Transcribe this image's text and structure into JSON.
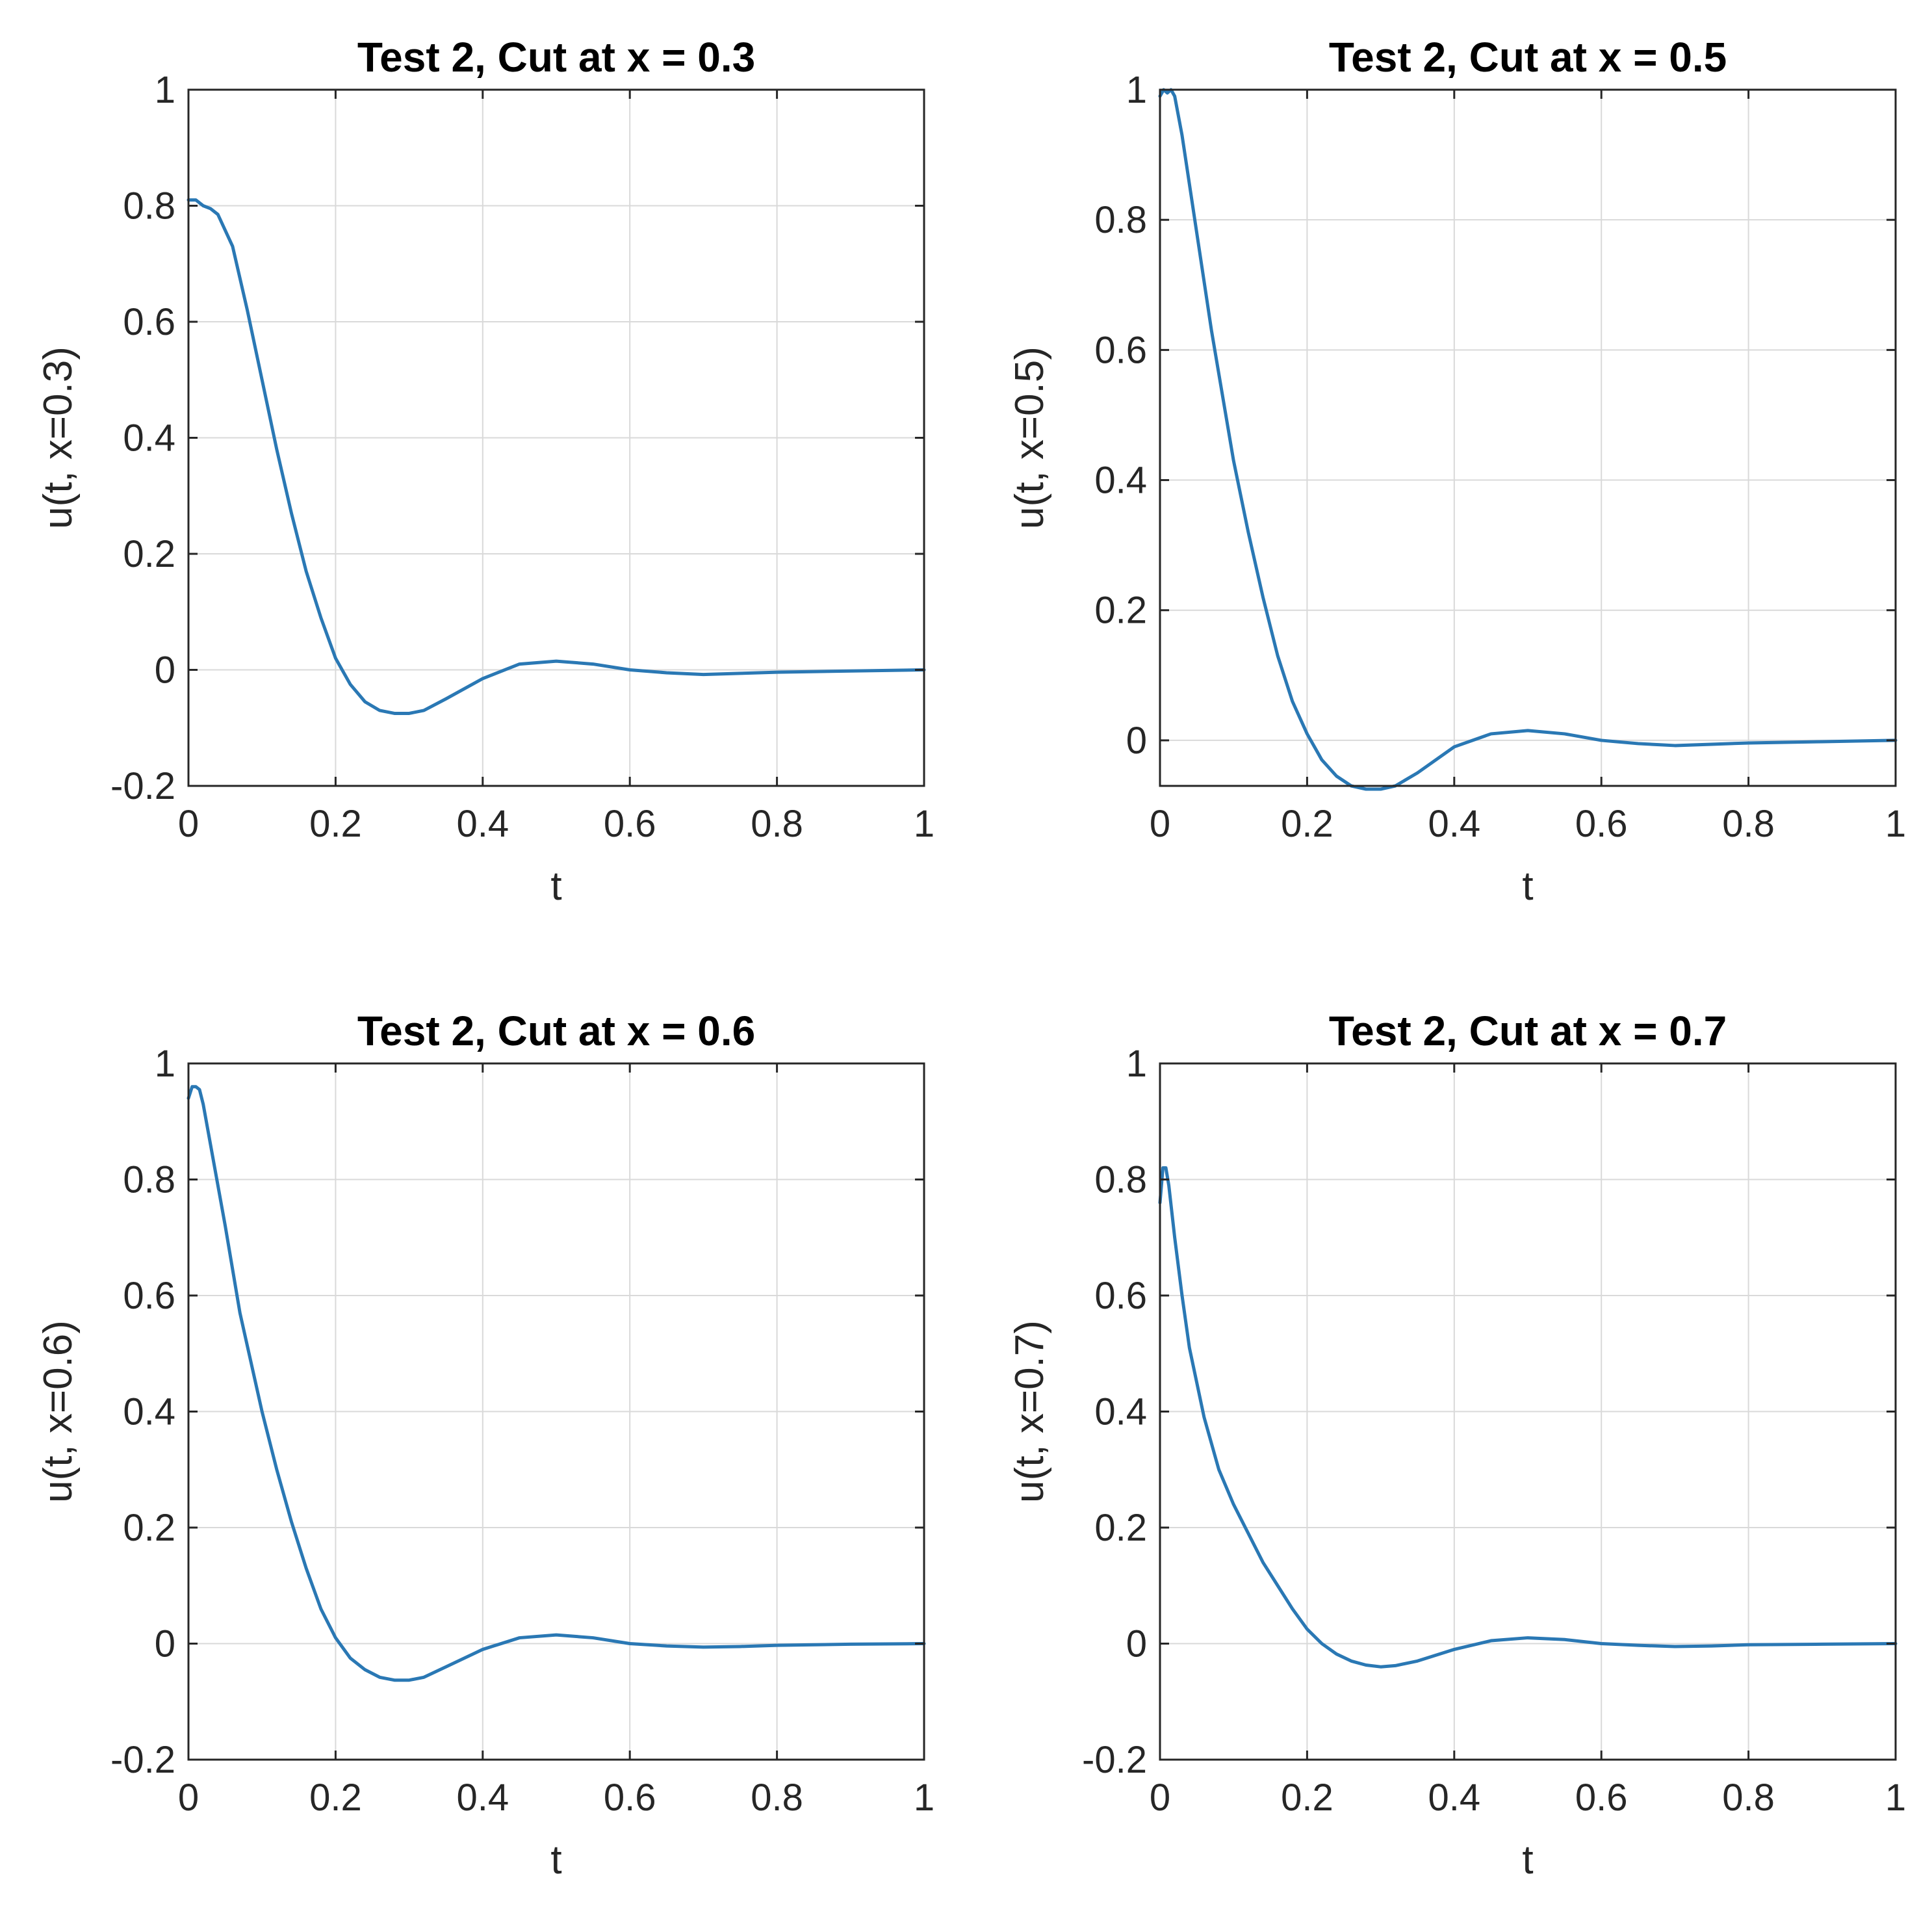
{
  "colors": {
    "series": "#2a78b4",
    "axis": "#262626",
    "grid": "#d9d9d9"
  },
  "chart_data": [
    {
      "type": "line",
      "title": "Test 2, Cut at x = 0.3",
      "xlabel": "t",
      "ylabel": "u(t, x=0.3)",
      "xlim": [
        0,
        1
      ],
      "ylim": [
        -0.2,
        1
      ],
      "xticks": [
        0,
        0.2,
        0.4,
        0.6,
        0.8,
        1
      ],
      "xtick_labels": [
        "0",
        "0.2",
        "0.4",
        "0.6",
        "0.8",
        "1"
      ],
      "yticks": [
        -0.2,
        0,
        0.2,
        0.4,
        0.6,
        0.8,
        1
      ],
      "ytick_labels": [
        "-0.2",
        "0",
        "0.2",
        "0.4",
        "0.6",
        "0.8",
        "1"
      ],
      "grid": true,
      "series": [
        {
          "name": "u",
          "x": [
            0,
            0.01,
            0.02,
            0.03,
            0.04,
            0.06,
            0.08,
            0.1,
            0.12,
            0.14,
            0.16,
            0.18,
            0.2,
            0.22,
            0.24,
            0.26,
            0.28,
            0.3,
            0.32,
            0.35,
            0.4,
            0.45,
            0.5,
            0.55,
            0.6,
            0.65,
            0.7,
            0.75,
            0.8,
            0.9,
            1.0
          ],
          "y": [
            0.81,
            0.81,
            0.8,
            0.795,
            0.785,
            0.73,
            0.62,
            0.5,
            0.38,
            0.27,
            0.17,
            0.09,
            0.02,
            -0.025,
            -0.055,
            -0.07,
            -0.075,
            -0.075,
            -0.07,
            -0.05,
            -0.015,
            0.01,
            0.015,
            0.01,
            0.0,
            -0.005,
            -0.008,
            -0.006,
            -0.004,
            -0.002,
            0.0
          ]
        }
      ]
    },
    {
      "type": "line",
      "title": "Test 2, Cut at x = 0.5",
      "xlabel": "t",
      "ylabel": "u(t, x=0.5)",
      "xlim": [
        0,
        1
      ],
      "ylim": [
        -0.07,
        1
      ],
      "xticks": [
        0,
        0.2,
        0.4,
        0.6,
        0.8,
        1
      ],
      "xtick_labels": [
        "0",
        "0.2",
        "0.4",
        "0.6",
        "0.8",
        "1"
      ],
      "yticks": [
        0,
        0.2,
        0.4,
        0.6,
        0.8,
        1
      ],
      "ytick_labels": [
        "0",
        "0.2",
        "0.4",
        "0.6",
        "0.8",
        "1"
      ],
      "grid": true,
      "series": [
        {
          "name": "u",
          "x": [
            0,
            0.005,
            0.01,
            0.015,
            0.02,
            0.03,
            0.05,
            0.07,
            0.1,
            0.12,
            0.14,
            0.16,
            0.18,
            0.2,
            0.22,
            0.24,
            0.26,
            0.28,
            0.3,
            0.32,
            0.35,
            0.4,
            0.45,
            0.5,
            0.55,
            0.6,
            0.65,
            0.7,
            0.75,
            0.8,
            0.9,
            1.0
          ],
          "y": [
            0.99,
            1.0,
            0.995,
            1.0,
            0.99,
            0.93,
            0.78,
            0.63,
            0.43,
            0.32,
            0.22,
            0.13,
            0.06,
            0.01,
            -0.03,
            -0.055,
            -0.07,
            -0.075,
            -0.075,
            -0.07,
            -0.05,
            -0.01,
            0.01,
            0.015,
            0.01,
            0.0,
            -0.005,
            -0.008,
            -0.006,
            -0.004,
            -0.002,
            0.0
          ]
        }
      ]
    },
    {
      "type": "line",
      "title": "Test 2, Cut at x = 0.6",
      "xlabel": "t",
      "ylabel": "u(t, x=0.6)",
      "xlim": [
        0,
        1
      ],
      "ylim": [
        -0.2,
        1
      ],
      "xticks": [
        0,
        0.2,
        0.4,
        0.6,
        0.8,
        1
      ],
      "xtick_labels": [
        "0",
        "0.2",
        "0.4",
        "0.6",
        "0.8",
        "1"
      ],
      "yticks": [
        -0.2,
        0,
        0.2,
        0.4,
        0.6,
        0.8,
        1
      ],
      "ytick_labels": [
        "-0.2",
        "0",
        "0.2",
        "0.4",
        "0.6",
        "0.8",
        "1"
      ],
      "grid": true,
      "series": [
        {
          "name": "u",
          "x": [
            0,
            0.005,
            0.01,
            0.015,
            0.02,
            0.03,
            0.05,
            0.07,
            0.1,
            0.12,
            0.14,
            0.16,
            0.18,
            0.2,
            0.22,
            0.24,
            0.26,
            0.28,
            0.3,
            0.32,
            0.35,
            0.4,
            0.45,
            0.5,
            0.55,
            0.6,
            0.65,
            0.7,
            0.75,
            0.8,
            0.9,
            1.0
          ],
          "y": [
            0.94,
            0.96,
            0.96,
            0.955,
            0.93,
            0.86,
            0.72,
            0.57,
            0.4,
            0.3,
            0.21,
            0.13,
            0.06,
            0.01,
            -0.025,
            -0.045,
            -0.058,
            -0.063,
            -0.063,
            -0.058,
            -0.04,
            -0.01,
            0.01,
            0.015,
            0.01,
            0.0,
            -0.004,
            -0.006,
            -0.005,
            -0.003,
            -0.001,
            0.0
          ]
        }
      ]
    },
    {
      "type": "line",
      "title": "Test 2, Cut at x = 0.7",
      "xlabel": "t",
      "ylabel": "u(t, x=0.7)",
      "xlim": [
        0,
        1
      ],
      "ylim": [
        -0.2,
        1
      ],
      "xticks": [
        0,
        0.2,
        0.4,
        0.6,
        0.8,
        1
      ],
      "xtick_labels": [
        "0",
        "0.2",
        "0.4",
        "0.6",
        "0.8",
        "1"
      ],
      "yticks": [
        -0.2,
        0,
        0.2,
        0.4,
        0.6,
        0.8,
        1
      ],
      "ytick_labels": [
        "-0.2",
        "0",
        "0.2",
        "0.4",
        "0.6",
        "0.8",
        "1"
      ],
      "grid": true,
      "series": [
        {
          "name": "u",
          "x": [
            0,
            0.004,
            0.008,
            0.012,
            0.02,
            0.03,
            0.04,
            0.06,
            0.08,
            0.1,
            0.12,
            0.14,
            0.16,
            0.18,
            0.2,
            0.22,
            0.24,
            0.26,
            0.28,
            0.3,
            0.32,
            0.35,
            0.4,
            0.45,
            0.5,
            0.55,
            0.6,
            0.65,
            0.7,
            0.75,
            0.8,
            0.9,
            1.0
          ],
          "y": [
            0.76,
            0.82,
            0.82,
            0.79,
            0.7,
            0.6,
            0.51,
            0.39,
            0.3,
            0.24,
            0.19,
            0.14,
            0.1,
            0.06,
            0.025,
            0.0,
            -0.018,
            -0.03,
            -0.037,
            -0.04,
            -0.038,
            -0.03,
            -0.01,
            0.005,
            0.01,
            0.007,
            0.0,
            -0.003,
            -0.005,
            -0.004,
            -0.002,
            -0.001,
            0.0
          ]
        }
      ]
    }
  ]
}
